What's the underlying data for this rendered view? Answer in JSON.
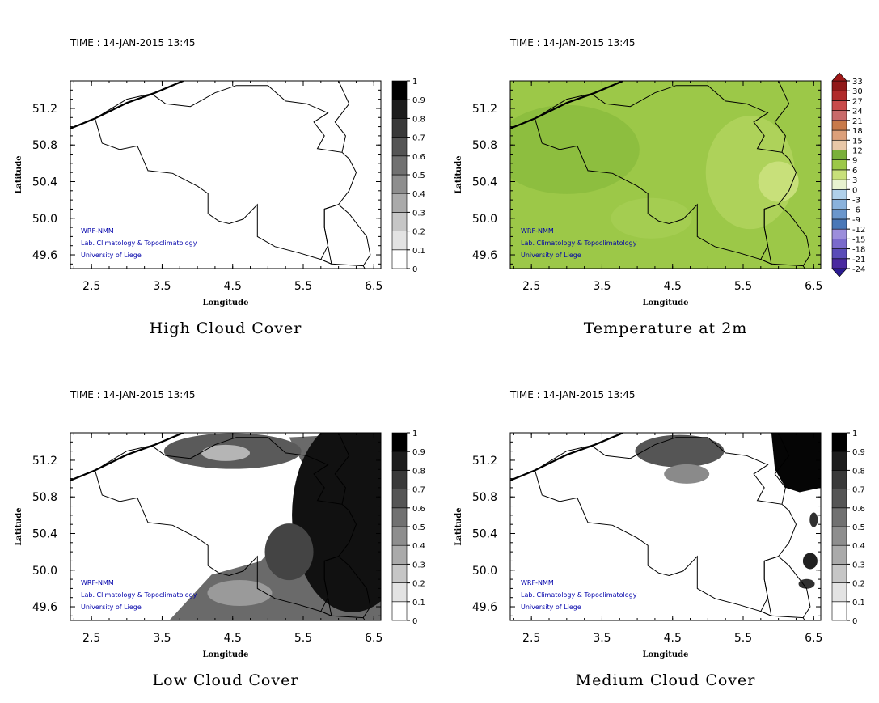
{
  "panels": [
    {
      "time": "TIME : 14-JAN-2015 13:45",
      "title": "High Cloud Cover",
      "xlabel": "Longitude",
      "ylabel": "Latitude",
      "colorbar": "grey",
      "colorbar_labels": [
        "0",
        "0.1",
        "0.2",
        "0.3",
        "0.4",
        "0.5",
        "0.6",
        "0.7",
        "0.8",
        "0.9",
        "1"
      ],
      "field": "none"
    },
    {
      "time": "TIME : 14-JAN-2015 13:45",
      "title": "Temperature at 2m",
      "xlabel": "Longitude",
      "ylabel": "Latitude",
      "colorbar": "temp",
      "colorbar_labels": [
        "-24",
        "-21",
        "-18",
        "-15",
        "-12",
        "-9",
        "-6",
        "-3",
        "0",
        "3",
        "6",
        "9",
        "12",
        "15",
        "18",
        "21",
        "24",
        "27",
        "30",
        "33"
      ],
      "field": "temp"
    },
    {
      "time": "TIME : 14-JAN-2015 13:45",
      "title": "Low Cloud Cover",
      "xlabel": "Longitude",
      "ylabel": "Latitude",
      "colorbar": "grey",
      "colorbar_labels": [
        "0",
        "0.1",
        "0.2",
        "0.3",
        "0.4",
        "0.5",
        "0.6",
        "0.7",
        "0.8",
        "0.9",
        "1"
      ],
      "field": "low"
    },
    {
      "time": "TIME : 14-JAN-2015 13:45",
      "title": "Medium Cloud Cover",
      "xlabel": "Longitude",
      "ylabel": "Latitude",
      "colorbar": "grey",
      "colorbar_labels": [
        "0",
        "0.1",
        "0.2",
        "0.3",
        "0.4",
        "0.5",
        "0.6",
        "0.7",
        "0.8",
        "0.9",
        "1"
      ],
      "field": "medium"
    }
  ],
  "credits": [
    "WRF-NMM",
    "Lab. Climatology & Topoclimatology",
    "University of Liege"
  ],
  "chart_data": [
    {
      "type": "heatmap",
      "title": "High Cloud Cover",
      "xlabel": "Longitude",
      "ylabel": "Latitude",
      "xticks": [
        "2.5",
        "3.5",
        "4.5",
        "5.5",
        "6.5"
      ],
      "yticks": [
        "49.6",
        "50.0",
        "50.4",
        "50.8",
        "51.2"
      ],
      "xlim": [
        2.2,
        6.6
      ],
      "ylim": [
        49.45,
        51.5
      ],
      "color_levels": [
        0,
        0.1,
        0.2,
        0.3,
        0.4,
        0.5,
        0.6,
        0.7,
        0.8,
        0.9,
        1
      ],
      "field_summary": "0 everywhere"
    },
    {
      "type": "heatmap",
      "title": "Temperature at 2m",
      "xlabel": "Longitude",
      "ylabel": "Latitude",
      "xticks": [
        "2.5",
        "3.5",
        "4.5",
        "5.5",
        "6.5"
      ],
      "yticks": [
        "49.6",
        "50.0",
        "50.4",
        "50.8",
        "51.2"
      ],
      "xlim": [
        2.2,
        6.6
      ],
      "ylim": [
        49.45,
        51.5
      ],
      "color_levels": [
        -24,
        -21,
        -18,
        -15,
        -12,
        -9,
        -6,
        -3,
        0,
        3,
        6,
        9,
        12,
        15,
        18,
        21,
        24,
        27,
        30,
        33
      ],
      "field_summary": "about 3 to 9 over domain, lowest near 6.0E 50.4N"
    },
    {
      "type": "heatmap",
      "title": "Low Cloud Cover",
      "xlabel": "Longitude",
      "ylabel": "Latitude",
      "xticks": [
        "2.5",
        "3.5",
        "4.5",
        "5.5",
        "6.5"
      ],
      "yticks": [
        "49.6",
        "50.0",
        "50.4",
        "50.8",
        "51.2"
      ],
      "xlim": [
        2.2,
        6.6
      ],
      "ylim": [
        49.45,
        51.5
      ],
      "color_levels": [
        0,
        0.1,
        0.2,
        0.3,
        0.4,
        0.5,
        0.6,
        0.7,
        0.8,
        0.9,
        1
      ],
      "field_summary": "near 1 in east, 0.6-0.8 north band and south, 0 in west"
    },
    {
      "type": "heatmap",
      "title": "Medium Cloud Cover",
      "xlabel": "Longitude",
      "ylabel": "Latitude",
      "xticks": [
        "2.5",
        "3.5",
        "4.5",
        "5.5",
        "6.5"
      ],
      "yticks": [
        "49.6",
        "50.0",
        "50.4",
        "50.8",
        "51.2"
      ],
      "xlim": [
        2.2,
        6.6
      ],
      "ylim": [
        49.45,
        51.5
      ],
      "color_levels": [
        0,
        0.1,
        0.2,
        0.3,
        0.4,
        0.5,
        0.6,
        0.7,
        0.8,
        0.9,
        1
      ],
      "field_summary": "near 1 in north-east corner, 0.6-0.8 patch near 4.5E 51.2N, 0 elsewhere"
    }
  ]
}
